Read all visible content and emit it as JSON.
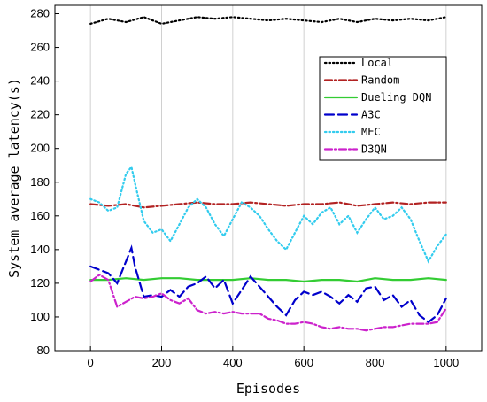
{
  "chart_data": {
    "type": "line",
    "xlabel": "Episodes",
    "ylabel": "System average latency(s)",
    "xlim": [
      -100,
      1100
    ],
    "ylim": [
      80,
      285
    ],
    "xticks": [
      0,
      200,
      400,
      600,
      800,
      1000
    ],
    "yticks": [
      80,
      100,
      120,
      140,
      160,
      180,
      200,
      220,
      240,
      260,
      280
    ],
    "grid": "vertical",
    "legend_position": "right",
    "series": [
      {
        "name": "Local",
        "color": "#000000",
        "dash": "dot",
        "x": [
          0,
          50,
          100,
          150,
          200,
          250,
          300,
          350,
          400,
          450,
          500,
          550,
          600,
          650,
          700,
          750,
          800,
          850,
          900,
          950,
          1000
        ],
        "y": [
          274,
          277,
          275,
          278,
          274,
          276,
          278,
          277,
          278,
          277,
          276,
          277,
          276,
          275,
          277,
          275,
          277,
          276,
          277,
          276,
          278
        ]
      },
      {
        "name": "Random",
        "color": "#b22222",
        "dash": "dashdot",
        "x": [
          0,
          50,
          100,
          150,
          200,
          250,
          300,
          350,
          400,
          450,
          500,
          550,
          600,
          650,
          700,
          750,
          800,
          850,
          900,
          950,
          1000
        ],
        "y": [
          167,
          166,
          167,
          165,
          166,
          167,
          168,
          167,
          167,
          168,
          167,
          166,
          167,
          167,
          168,
          166,
          167,
          168,
          167,
          168,
          168
        ]
      },
      {
        "name": "Dueling DQN",
        "color": "#33cc33",
        "dash": "solid",
        "x": [
          0,
          50,
          100,
          150,
          200,
          250,
          300,
          350,
          400,
          450,
          500,
          550,
          600,
          650,
          700,
          750,
          800,
          850,
          900,
          950,
          1000
        ],
        "y": [
          122,
          122,
          123,
          122,
          123,
          123,
          122,
          122,
          122,
          123,
          122,
          122,
          121,
          122,
          122,
          121,
          123,
          122,
          122,
          123,
          122
        ]
      },
      {
        "name": "A3C",
        "color": "#0000cc",
        "dash": "longdash",
        "x": [
          0,
          25,
          50,
          75,
          100,
          115,
          125,
          150,
          175,
          200,
          225,
          250,
          275,
          300,
          325,
          350,
          375,
          400,
          425,
          450,
          475,
          500,
          525,
          550,
          575,
          600,
          625,
          650,
          675,
          700,
          725,
          750,
          775,
          800,
          825,
          850,
          875,
          900,
          925,
          950,
          975,
          1000
        ],
        "y": [
          130,
          128,
          126,
          120,
          133,
          141,
          130,
          112,
          113,
          112,
          116,
          112,
          118,
          120,
          124,
          117,
          122,
          108,
          116,
          124,
          118,
          112,
          106,
          101,
          110,
          115,
          113,
          115,
          112,
          108,
          113,
          109,
          117,
          118,
          110,
          113,
          106,
          110,
          101,
          97,
          101,
          111
        ]
      },
      {
        "name": "MEC",
        "color": "#33ccee",
        "dash": "dot",
        "x": [
          0,
          25,
          50,
          75,
          100,
          115,
          130,
          150,
          175,
          200,
          225,
          250,
          275,
          300,
          325,
          350,
          375,
          400,
          425,
          450,
          475,
          500,
          525,
          550,
          575,
          600,
          625,
          650,
          675,
          700,
          725,
          750,
          775,
          800,
          825,
          850,
          875,
          900,
          925,
          950,
          975,
          1000
        ],
        "y": [
          170,
          168,
          163,
          165,
          185,
          189,
          175,
          157,
          150,
          152,
          145,
          155,
          165,
          170,
          165,
          155,
          148,
          158,
          168,
          165,
          160,
          152,
          145,
          140,
          150,
          160,
          155,
          162,
          165,
          155,
          160,
          150,
          158,
          165,
          158,
          160,
          165,
          158,
          145,
          133,
          142,
          149
        ]
      },
      {
        "name": "D3QN",
        "color": "#cc22cc",
        "dash": "dashdot",
        "x": [
          0,
          25,
          50,
          75,
          100,
          125,
          150,
          175,
          200,
          225,
          250,
          275,
          300,
          325,
          350,
          375,
          400,
          425,
          450,
          475,
          500,
          525,
          550,
          575,
          600,
          625,
          650,
          675,
          700,
          725,
          750,
          775,
          800,
          825,
          850,
          875,
          900,
          925,
          950,
          975,
          1000
        ],
        "y": [
          121,
          125,
          122,
          106,
          109,
          112,
          111,
          112,
          114,
          110,
          108,
          111,
          104,
          102,
          103,
          102,
          103,
          102,
          102,
          102,
          99,
          98,
          96,
          96,
          97,
          96,
          94,
          93,
          94,
          93,
          93,
          92,
          93,
          94,
          94,
          95,
          96,
          96,
          96,
          97,
          105
        ]
      }
    ]
  }
}
